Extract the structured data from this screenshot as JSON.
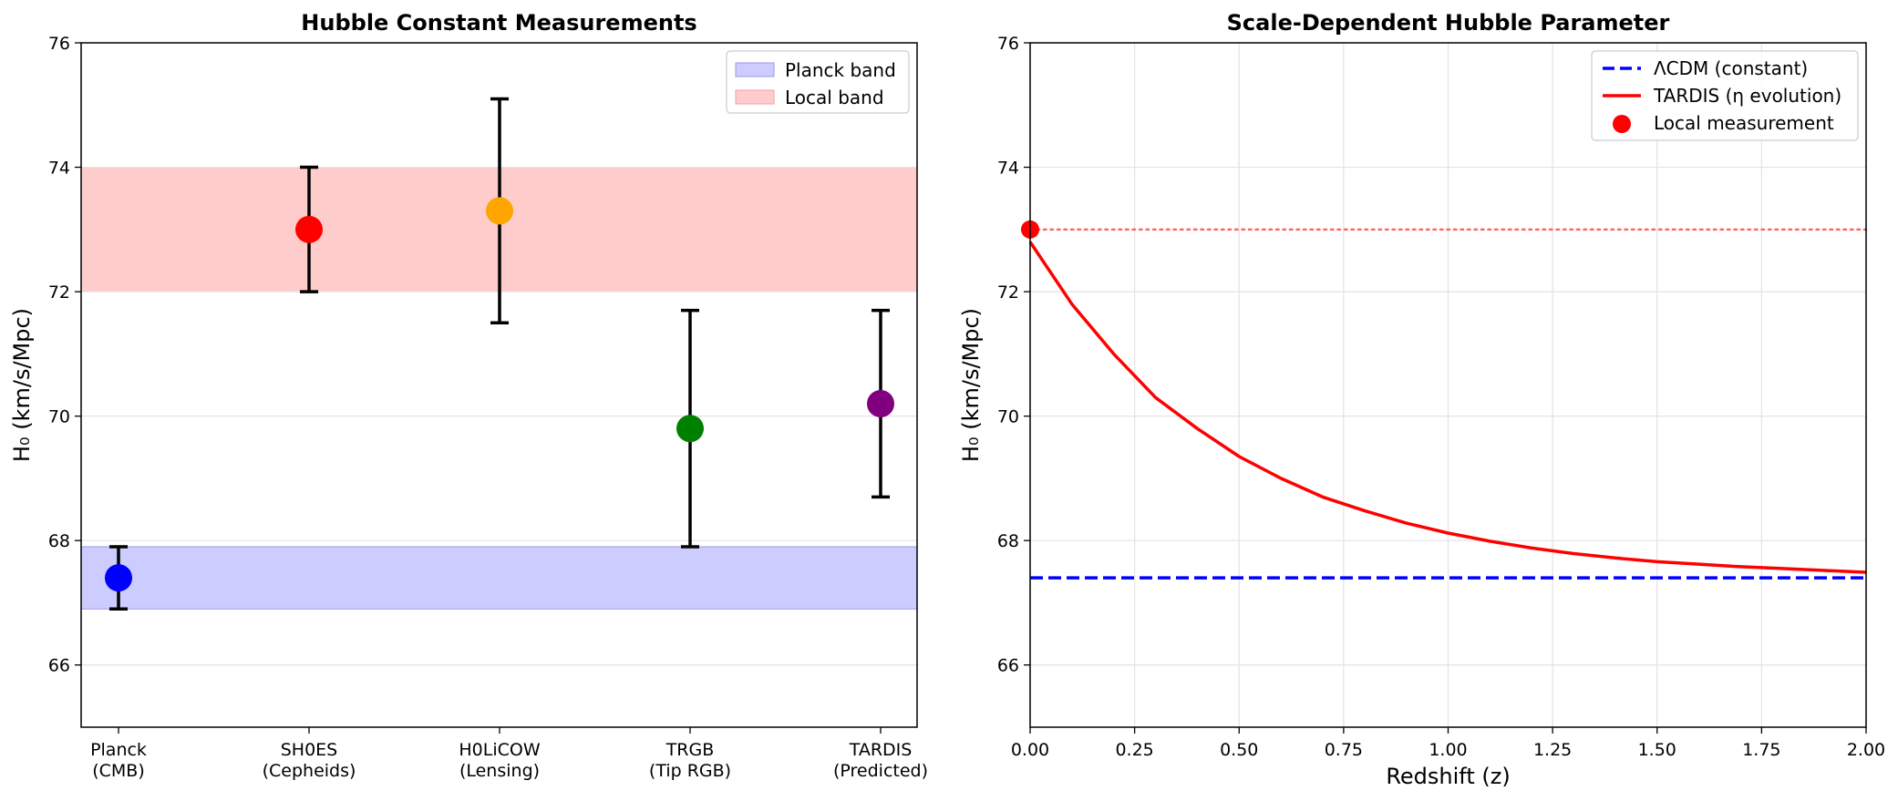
{
  "chart_data": [
    {
      "type": "scatter",
      "title": "Hubble Constant Measurements",
      "xlabel": "",
      "ylabel": "H₀ (km/s/Mpc)",
      "ylim": [
        65,
        76
      ],
      "yticks": [
        "66",
        "68",
        "70",
        "72",
        "74",
        "76"
      ],
      "grid": "y",
      "legend_position": "top-right",
      "categories": [
        {
          "line1": "Planck",
          "line2": "(CMB)"
        },
        {
          "line1": "SH0ES",
          "line2": "(Cepheids)"
        },
        {
          "line1": "H0LiCOW",
          "line2": "(Lensing)"
        },
        {
          "line1": "TRGB",
          "line2": "(Tip RGB)"
        },
        {
          "line1": "TARDIS",
          "line2": "(Predicted)"
        }
      ],
      "points": [
        {
          "value": 67.4,
          "err": 0.5,
          "color": "#0000ff"
        },
        {
          "value": 73.0,
          "err": 1.0,
          "color": "#ff0000"
        },
        {
          "value": 73.3,
          "err": 1.8,
          "color": "#ffa500"
        },
        {
          "value": 69.8,
          "err": 1.9,
          "color": "#008000"
        },
        {
          "value": 70.2,
          "err": 1.5,
          "color": "#800080"
        }
      ],
      "bands": [
        {
          "name": "Planck band",
          "range": [
            66.9,
            67.9
          ],
          "color": "#ccccff",
          "edge": "#9999ee"
        },
        {
          "name": "Local band",
          "range": [
            72.0,
            74.0
          ],
          "color": "#ffcccc",
          "edge": "#f0a0a0"
        }
      ]
    },
    {
      "type": "line",
      "title": "Scale-Dependent Hubble Parameter",
      "xlabel": "Redshift (z)",
      "ylabel": "H₀ (km/s/Mpc)",
      "xlim": [
        0,
        2
      ],
      "ylim": [
        65,
        76
      ],
      "xticks": [
        "0.00",
        "0.25",
        "0.50",
        "0.75",
        "1.00",
        "1.25",
        "1.50",
        "1.75",
        "2.00"
      ],
      "yticks": [
        "66",
        "68",
        "70",
        "72",
        "74",
        "76"
      ],
      "grid": "both",
      "legend_position": "top-right",
      "series": [
        {
          "name": "ΛCDM (constant)",
          "style": "dashed",
          "color": "#0000ff",
          "x": [
            0,
            2
          ],
          "y": [
            67.4,
            67.4
          ]
        },
        {
          "name": "TARDIS (η evolution)",
          "style": "solid",
          "color": "#ff0000",
          "x": [
            0,
            0.1,
            0.2,
            0.3,
            0.4,
            0.5,
            0.6,
            0.7,
            0.8,
            0.9,
            1.0,
            1.1,
            1.2,
            1.3,
            1.4,
            1.5,
            1.6,
            1.7,
            1.8,
            1.9,
            2.0
          ],
          "y": [
            72.8,
            71.8,
            71.0,
            70.3,
            69.8,
            69.35,
            69.0,
            68.7,
            68.48,
            68.28,
            68.12,
            67.99,
            67.88,
            67.79,
            67.72,
            67.66,
            67.62,
            67.58,
            67.55,
            67.52,
            67.49
          ]
        }
      ],
      "reference_line": {
        "y": 73.0,
        "style": "dotted",
        "color": "#ff6666"
      },
      "markers": [
        {
          "name": "Local measurement",
          "x": 0,
          "y": 73.0,
          "color": "#ff0000"
        }
      ]
    }
  ]
}
